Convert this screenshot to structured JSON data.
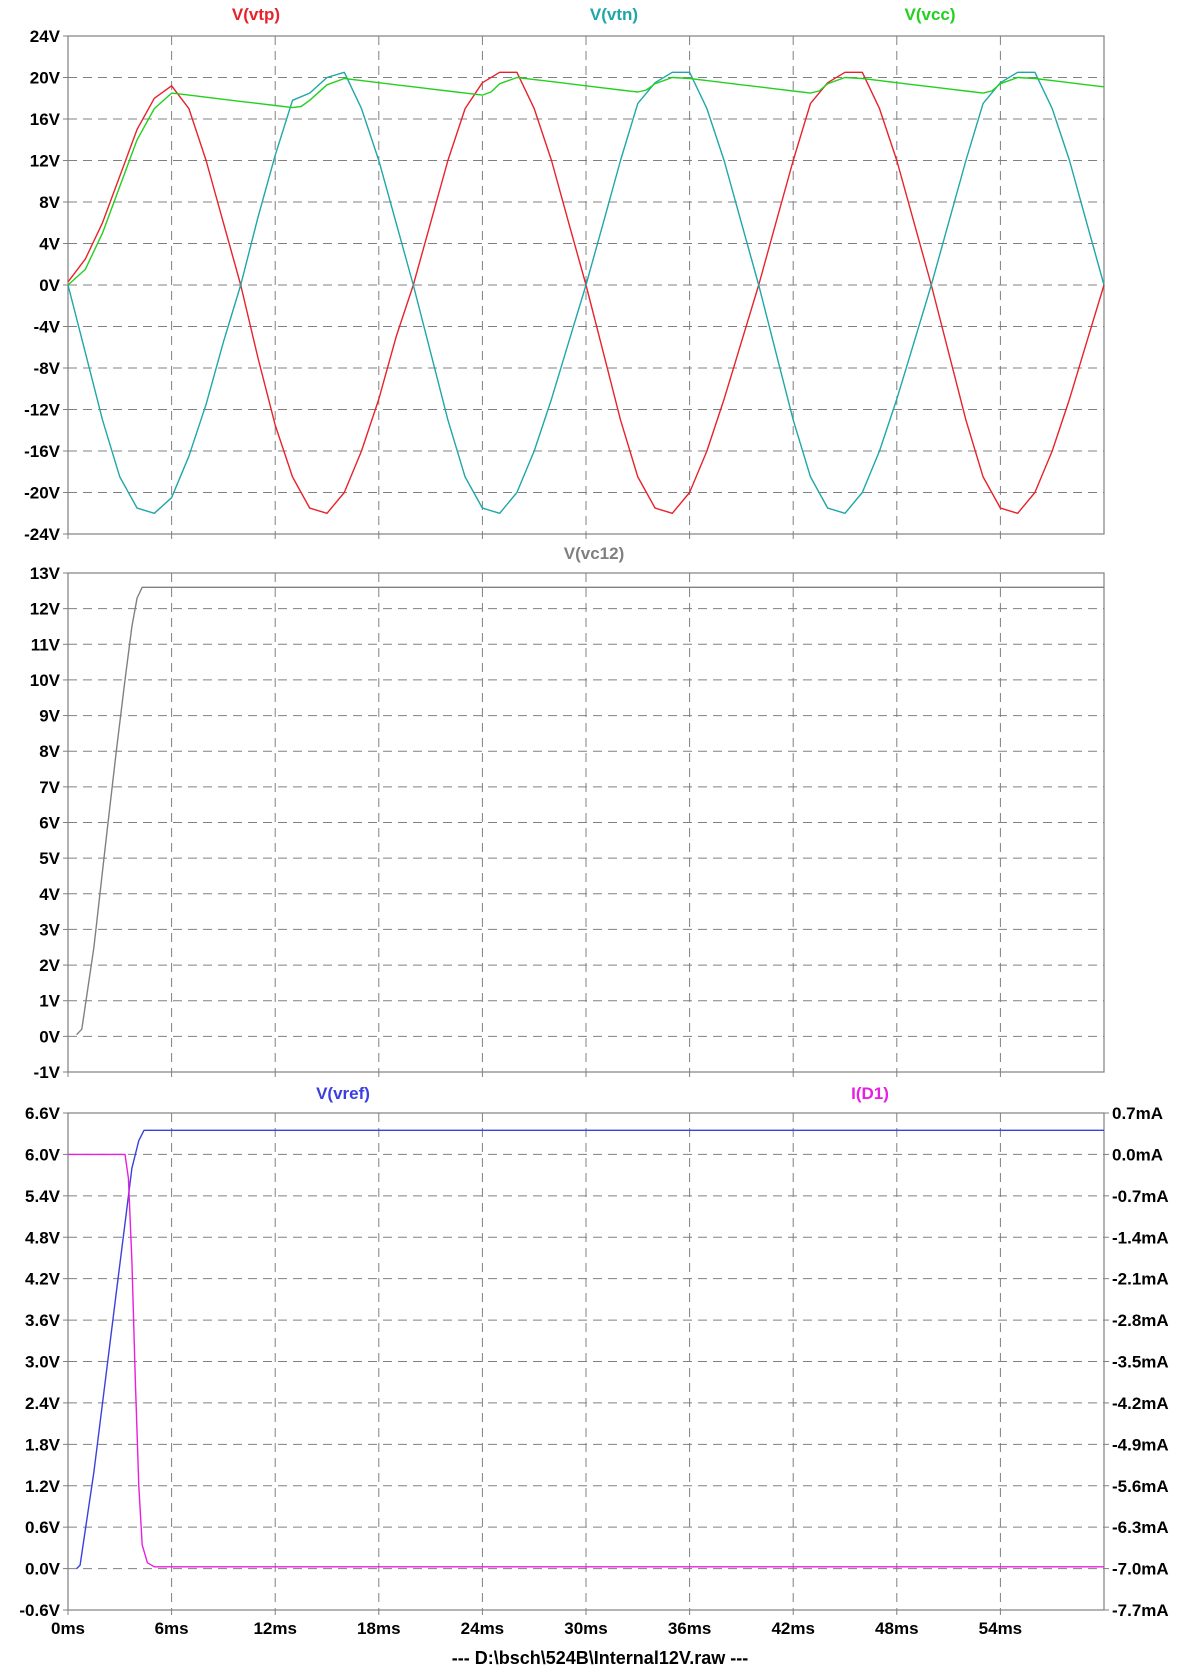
{
  "footer": "---  D:\\bsch\\524B\\Internal12V.raw  ---",
  "chart_data": [
    {
      "type": "line",
      "xlabel": "",
      "ylabel": "",
      "x_ticks": [
        "0ms",
        "6ms",
        "12ms",
        "18ms",
        "24ms",
        "30ms",
        "36ms",
        "42ms",
        "48ms",
        "54ms"
      ],
      "xlim": [
        0,
        60
      ],
      "ylim": [
        -24,
        24
      ],
      "y_ticks": [
        "24V",
        "20V",
        "16V",
        "12V",
        "8V",
        "4V",
        "0V",
        "-4V",
        "-8V",
        "-12V",
        "-16V",
        "-20V",
        "-24V"
      ],
      "grid": true,
      "legend": "top",
      "series": [
        {
          "name": "V(vtp)",
          "color": "#e8222b",
          "x": [
            0,
            1,
            2,
            3,
            4,
            5,
            6,
            7,
            8,
            9,
            10,
            11,
            12,
            13,
            14,
            15,
            16,
            17,
            18,
            19,
            20,
            21,
            22,
            23,
            24,
            25,
            26,
            27,
            28,
            29,
            30,
            31,
            32,
            33,
            34,
            35,
            36,
            37,
            38,
            39,
            40,
            41,
            42,
            43,
            44,
            45,
            46,
            47,
            48,
            49,
            50,
            51,
            52,
            53,
            54,
            55,
            56,
            57,
            58,
            59,
            60
          ],
          "y": [
            0.3,
            2.5,
            6,
            10.5,
            15,
            18,
            19.2,
            17,
            12,
            6,
            0,
            -7,
            -13.5,
            -18.5,
            -21.5,
            -22,
            -20,
            -16,
            -11,
            -5,
            0,
            6,
            12,
            17,
            19.5,
            20.5,
            20.5,
            17,
            12,
            6,
            0,
            -6.5,
            -13,
            -18.5,
            -21.5,
            -22,
            -20,
            -16,
            -11,
            -5.5,
            0,
            6,
            12,
            17.5,
            19.5,
            20.5,
            20.5,
            17,
            12,
            6,
            0,
            -6.5,
            -13,
            -18.5,
            -21.5,
            -22,
            -20,
            -16,
            -11,
            -5.5,
            0
          ]
        },
        {
          "name": "V(vtn)",
          "color": "#1fa7a8",
          "x": [
            0,
            1,
            2,
            3,
            4,
            5,
            6,
            7,
            8,
            9,
            10,
            11,
            12,
            13,
            14,
            15,
            16,
            17,
            18,
            19,
            20,
            21,
            22,
            23,
            24,
            25,
            26,
            27,
            28,
            29,
            30,
            31,
            32,
            33,
            34,
            35,
            36,
            37,
            38,
            39,
            40,
            41,
            42,
            43,
            44,
            45,
            46,
            47,
            48,
            49,
            50,
            51,
            52,
            53,
            54,
            55,
            56,
            57,
            58,
            59,
            60
          ],
          "y": [
            0,
            -6.5,
            -13,
            -18.5,
            -21.5,
            -22,
            -20.5,
            -16.5,
            -11.5,
            -5.5,
            0,
            6.5,
            12.5,
            17.8,
            18.5,
            20,
            20.5,
            17,
            12,
            6,
            0,
            -6.5,
            -13,
            -18.5,
            -21.5,
            -22,
            -20,
            -16,
            -11,
            -5.5,
            0,
            6,
            12,
            17.5,
            19.5,
            20.5,
            20.5,
            17,
            12,
            6,
            0,
            -6.5,
            -13,
            -18.5,
            -21.5,
            -22,
            -20,
            -16,
            -11,
            -5.5,
            0,
            6,
            12,
            17.5,
            19.5,
            20.5,
            20.5,
            17,
            12,
            6,
            0
          ]
        },
        {
          "name": "V(vcc)",
          "color": "#22d11e",
          "x": [
            0,
            1,
            2,
            3,
            4,
            5,
            6,
            7,
            8,
            9,
            10,
            11,
            12,
            13,
            13.5,
            14,
            15,
            16,
            17,
            18,
            19,
            20,
            21,
            22,
            23,
            24,
            24.5,
            25,
            26,
            27,
            28,
            29,
            30,
            31,
            32,
            33,
            33.5,
            34,
            35,
            36,
            37,
            38,
            39,
            40,
            41,
            42,
            43,
            43.5,
            44,
            45,
            46,
            47,
            48,
            49,
            50,
            51,
            52,
            53,
            53.5,
            54,
            55,
            56,
            57,
            58,
            59,
            60
          ],
          "y": [
            0,
            1.5,
            5,
            9.5,
            14,
            17,
            18.5,
            18.3,
            18.1,
            17.9,
            17.7,
            17.5,
            17.3,
            17.1,
            17.2,
            17.8,
            19.3,
            19.9,
            19.7,
            19.5,
            19.3,
            19.1,
            18.9,
            18.7,
            18.5,
            18.3,
            18.6,
            19.4,
            20,
            19.8,
            19.6,
            19.4,
            19.2,
            19,
            18.8,
            18.6,
            18.8,
            19.4,
            20,
            19.9,
            19.7,
            19.5,
            19.3,
            19.1,
            18.9,
            18.7,
            18.5,
            18.7,
            19.4,
            20,
            19.9,
            19.7,
            19.5,
            19.3,
            19.1,
            18.9,
            18.7,
            18.5,
            18.7,
            19.4,
            20,
            19.9,
            19.7,
            19.5,
            19.3,
            19.1
          ]
        }
      ]
    },
    {
      "type": "line",
      "xlabel": "",
      "ylabel": "",
      "x_ticks": [
        "0ms",
        "6ms",
        "12ms",
        "18ms",
        "24ms",
        "30ms",
        "36ms",
        "42ms",
        "48ms",
        "54ms"
      ],
      "xlim": [
        0,
        60
      ],
      "ylim": [
        -1,
        13
      ],
      "y_ticks": [
        "13V",
        "12V",
        "11V",
        "10V",
        "9V",
        "8V",
        "7V",
        "6V",
        "5V",
        "4V",
        "3V",
        "2V",
        "1V",
        "0V",
        "-1V"
      ],
      "grid": true,
      "legend": "top",
      "series": [
        {
          "name": "V(vc12)",
          "color": "#808080",
          "x": [
            0.5,
            0.8,
            1.5,
            2.2,
            2.8,
            3.3,
            3.7,
            4.0,
            4.3,
            5,
            10,
            20,
            30,
            40,
            50,
            60
          ],
          "y": [
            0.05,
            0.2,
            2.5,
            5.5,
            8,
            10,
            11.5,
            12.3,
            12.6,
            12.6,
            12.6,
            12.6,
            12.6,
            12.6,
            12.6,
            12.6
          ]
        }
      ]
    },
    {
      "type": "line",
      "xlabel": "",
      "ylabel": "",
      "x_ticks": [
        "0ms",
        "6ms",
        "12ms",
        "18ms",
        "24ms",
        "30ms",
        "36ms",
        "42ms",
        "48ms",
        "54ms"
      ],
      "xlim": [
        0,
        60
      ],
      "ylim": [
        -0.6,
        6.6
      ],
      "y_ticks": [
        "6.6V",
        "6.0V",
        "5.4V",
        "4.8V",
        "4.2V",
        "3.6V",
        "3.0V",
        "2.4V",
        "1.8V",
        "1.2V",
        "0.6V",
        "0.0V",
        "-0.6V"
      ],
      "y2lim": [
        -7.7,
        0.7
      ],
      "y2_ticks": [
        "0.7mA",
        "0.0mA",
        "-0.7mA",
        "-1.4mA",
        "-2.1mA",
        "-2.8mA",
        "-3.5mA",
        "-4.2mA",
        "-4.9mA",
        "-5.6mA",
        "-6.3mA",
        "-7.0mA",
        "-7.7mA"
      ],
      "grid": true,
      "legend": "top",
      "series": [
        {
          "name": "V(vref)",
          "color": "#3b3fe0",
          "axis": "left",
          "x": [
            0.5,
            0.7,
            1.5,
            2.2,
            2.8,
            3.3,
            3.7,
            4.1,
            4.4,
            5,
            10,
            20,
            30,
            40,
            50,
            60
          ],
          "y": [
            0,
            0.05,
            1.4,
            2.8,
            4.0,
            5.0,
            5.8,
            6.2,
            6.35,
            6.35,
            6.35,
            6.35,
            6.35,
            6.35,
            6.35,
            6.35
          ]
        },
        {
          "name": "I(D1)",
          "color": "#e81ee0",
          "axis": "right",
          "x": [
            0,
            3.3,
            3.5,
            3.7,
            3.9,
            4.1,
            4.3,
            4.6,
            5,
            6,
            10,
            20,
            30,
            40,
            50,
            60
          ],
          "y": [
            0,
            0,
            -0.4,
            -1.8,
            -3.8,
            -5.6,
            -6.6,
            -6.9,
            -6.97,
            -6.97,
            -6.97,
            -6.97,
            -6.97,
            -6.97,
            -6.97,
            -6.97
          ]
        }
      ]
    }
  ]
}
